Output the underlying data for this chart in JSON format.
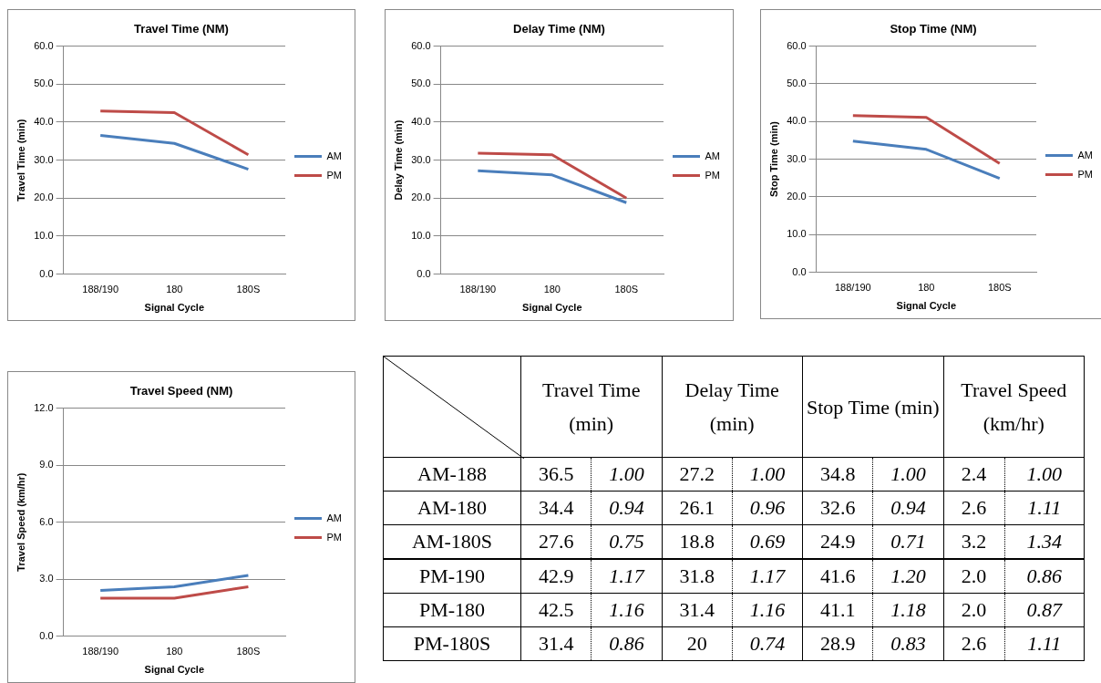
{
  "chart_data": [
    {
      "type": "line",
      "title": "Travel Time (NM)",
      "xlabel": "Signal Cycle",
      "ylabel": "Travel Time (min)",
      "categories": [
        "188/190",
        "180",
        "180S"
      ],
      "series": [
        {
          "name": "AM",
          "color": "#4a7ebb",
          "values": [
            36.5,
            34.4,
            27.6
          ]
        },
        {
          "name": "PM",
          "color": "#be4b48",
          "values": [
            42.9,
            42.5,
            31.4
          ]
        }
      ],
      "ylim": [
        0,
        60
      ],
      "yticks": [
        {
          "value": 0,
          "label": "0.0"
        },
        {
          "value": 10,
          "label": "10.0"
        },
        {
          "value": 20,
          "label": "20.0"
        },
        {
          "value": 30,
          "label": "30.0"
        },
        {
          "value": 40,
          "label": "40.0"
        },
        {
          "value": 50,
          "label": "50.0"
        },
        {
          "value": 60,
          "label": "60.0"
        }
      ],
      "grid": "y",
      "legend": "right",
      "marker": "none"
    },
    {
      "type": "line",
      "title": "Delay Time (NM)",
      "xlabel": "Signal Cycle",
      "ylabel": "Delay Time (min)",
      "categories": [
        "188/190",
        "180",
        "180S"
      ],
      "series": [
        {
          "name": "AM",
          "color": "#4a7ebb",
          "values": [
            27.2,
            26.1,
            18.8
          ]
        },
        {
          "name": "PM",
          "color": "#be4b48",
          "values": [
            31.8,
            31.4,
            20
          ]
        }
      ],
      "ylim": [
        0,
        60
      ],
      "yticks": [
        {
          "value": 0,
          "label": "0.0"
        },
        {
          "value": 10,
          "label": "10.0"
        },
        {
          "value": 20,
          "label": "20.0"
        },
        {
          "value": 30,
          "label": "30.0"
        },
        {
          "value": 40,
          "label": "40.0"
        },
        {
          "value": 50,
          "label": "50.0"
        },
        {
          "value": 60,
          "label": "60.0"
        }
      ],
      "grid": "y",
      "legend": "right",
      "marker": "none"
    },
    {
      "type": "line",
      "title": "Stop Time (NM)",
      "xlabel": "Signal Cycle",
      "ylabel": "Stop Time (min)",
      "categories": [
        "188/190",
        "180",
        "180S"
      ],
      "series": [
        {
          "name": "AM",
          "color": "#4a7ebb",
          "values": [
            34.8,
            32.6,
            24.9
          ]
        },
        {
          "name": "PM",
          "color": "#be4b48",
          "values": [
            41.6,
            41.1,
            28.9
          ]
        }
      ],
      "ylim": [
        0,
        60
      ],
      "yticks": [
        {
          "value": 0,
          "label": "0.0"
        },
        {
          "value": 10,
          "label": "10.0"
        },
        {
          "value": 20,
          "label": "20.0"
        },
        {
          "value": 30,
          "label": "30.0"
        },
        {
          "value": 40,
          "label": "40.0"
        },
        {
          "value": 50,
          "label": "50.0"
        },
        {
          "value": 60,
          "label": "60.0"
        }
      ],
      "grid": "y",
      "legend": "right",
      "marker": "none"
    },
    {
      "type": "line",
      "title": "Travel Speed (NM)",
      "xlabel": "Signal Cycle",
      "ylabel": "Travel Speed (km/hr)",
      "categories": [
        "188/190",
        "180",
        "180S"
      ],
      "series": [
        {
          "name": "AM",
          "color": "#4a7ebb",
          "values": [
            2.4,
            2.6,
            3.2
          ]
        },
        {
          "name": "PM",
          "color": "#be4b48",
          "values": [
            2.0,
            2.0,
            2.6
          ]
        }
      ],
      "ylim": [
        0,
        12
      ],
      "yticks": [
        {
          "value": 0,
          "label": "0.0"
        },
        {
          "value": 3,
          "label": "3.0"
        },
        {
          "value": 6,
          "label": "6.0"
        },
        {
          "value": 9,
          "label": "9.0"
        },
        {
          "value": 12,
          "label": "12.0"
        }
      ],
      "grid": "y",
      "legend": "right",
      "marker": "none"
    },
    {
      "type": "other",
      "categories": [
        "Travel Time (min)",
        "Delay Time (min)",
        "Stop Time (min)",
        "Travel Speed (km/hr)"
      ],
      "y_categories": [
        "AM-188",
        "AM-180",
        "AM-180S",
        "PM-190",
        "PM-180",
        "PM-180S"
      ],
      "cell_labels": [
        [
          "36.5",
          "1.00",
          "27.2",
          "1.00",
          "34.8",
          "1.00",
          "2.4",
          "1.00"
        ],
        [
          "34.4",
          "0.94",
          "26.1",
          "0.96",
          "32.6",
          "0.94",
          "2.6",
          "1.11"
        ],
        [
          "27.6",
          "0.75",
          "18.8",
          "0.69",
          "24.9",
          "0.71",
          "3.2",
          "1.34"
        ],
        [
          "42.9",
          "1.17",
          "31.8",
          "1.17",
          "41.6",
          "1.20",
          "2.0",
          "0.86"
        ],
        [
          "42.5",
          "1.16",
          "31.4",
          "1.16",
          "41.1",
          "1.18",
          "2.0",
          "0.87"
        ],
        [
          "31.4",
          "0.86",
          "20",
          "0.74",
          "28.9",
          "0.83",
          "2.6",
          "1.11"
        ]
      ]
    }
  ]
}
